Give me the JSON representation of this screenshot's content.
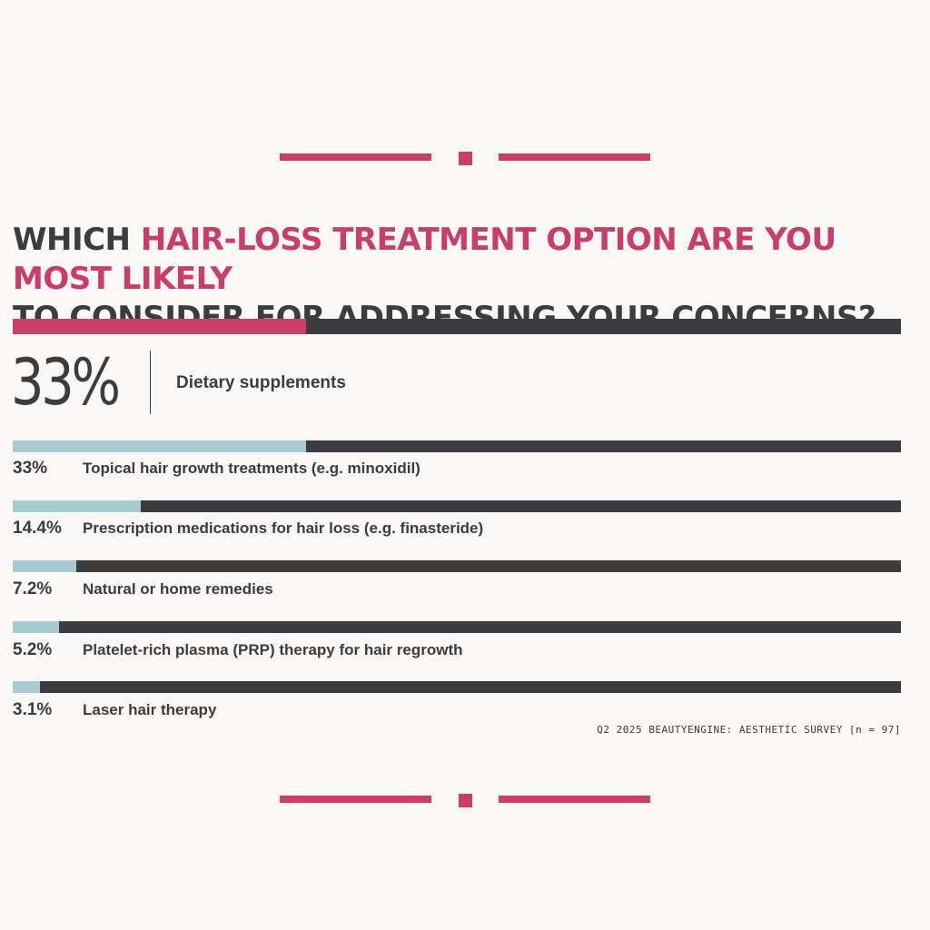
{
  "colors": {
    "accent": "#c93d6b",
    "bar_fill": "#a7cbd3",
    "bar_track": "#3c3b3d",
    "text": "#3c3b3d",
    "background": "#faf8f6"
  },
  "chart_data": {
    "type": "bar",
    "orientation": "horizontal",
    "title_prefix": "WHICH ",
    "title_highlight": "HAIR-LOSS TREATMENT OPTION ARE YOU MOST LIKELY",
    "title_suffix": "TO CONSIDER FOR ADDRESSING YOUR CONCERNS?",
    "xlim": [
      0,
      100
    ],
    "unit": "%",
    "headline": {
      "category": "Dietary supplements",
      "value": 33,
      "value_label": "33%"
    },
    "categories": [
      "Topical hair growth treatments (e.g. minoxidil)",
      "Prescription medications for hair loss (e.g. finasteride)",
      "Natural or home remedies",
      "Platelet-rich plasma (PRP) therapy for hair regrowth",
      "Laser hair therapy"
    ],
    "values": [
      33,
      14.4,
      7.2,
      5.2,
      3.1
    ],
    "value_labels": [
      "33%",
      "14.4%",
      "7.2%",
      "5.2%",
      "3.1%"
    ],
    "source": "Q2 2025 BEAUTYENGINE: AESTHETIC SURVEY [n = 97]"
  }
}
